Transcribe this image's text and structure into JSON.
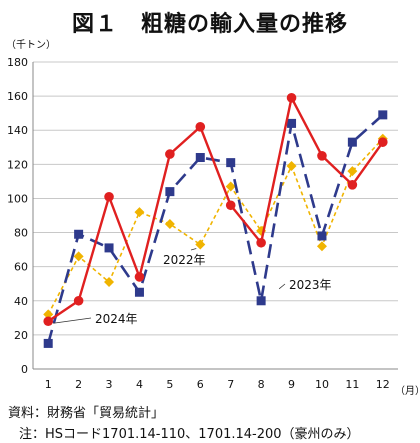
{
  "page": {
    "title": "図１　粗糖の輸入量の推移",
    "y_unit": "（千トン）",
    "x_unit": "（月）",
    "source": "資料：財務省「貿易統計」",
    "note": "注：HSコード1701.14-110、1701.14-200（豪州のみ）"
  },
  "chart_data": {
    "type": "line",
    "x": [
      1,
      2,
      3,
      4,
      5,
      6,
      7,
      8,
      9,
      10,
      11,
      12
    ],
    "categories": [
      "1",
      "2",
      "3",
      "4",
      "5",
      "6",
      "7",
      "8",
      "9",
      "10",
      "11",
      "12"
    ],
    "ylim": [
      0,
      180
    ],
    "yticks": [
      0,
      20,
      40,
      60,
      80,
      100,
      120,
      140,
      160,
      180
    ],
    "grid": true,
    "legend": "inline labels",
    "series": [
      {
        "name": "2022年",
        "color": "#F0B400",
        "dash": "4,3",
        "marker": "diamond",
        "values": [
          32,
          66,
          51,
          92,
          85,
          73,
          107,
          81,
          119,
          72,
          116,
          135
        ]
      },
      {
        "name": "2023年",
        "color": "#2E3A8C",
        "dash": "14,7",
        "marker": "square",
        "values": [
          15,
          79,
          71,
          45,
          104,
          124,
          121,
          40,
          144,
          78,
          133,
          149
        ]
      },
      {
        "name": "2024年",
        "color": "#E02020",
        "dash": "",
        "marker": "circle",
        "values": [
          28,
          40,
          101,
          54,
          126,
          142,
          96,
          74,
          159,
          125,
          108,
          133
        ]
      }
    ]
  }
}
